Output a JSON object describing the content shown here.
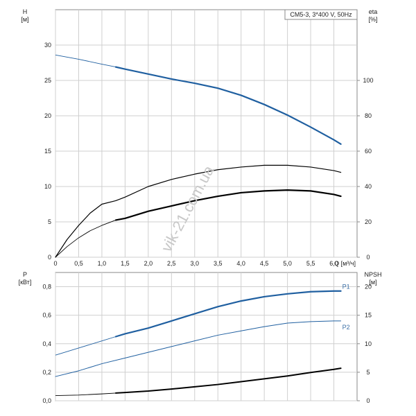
{
  "chart_data": [
    {
      "type": "line",
      "panel": "top",
      "model_label": "CM5-3, 3*400 V, 50Hz",
      "x_axis": {
        "label": "Q [м³/ч]",
        "range": [
          0,
          6.5
        ],
        "ticks": [
          "0",
          "0.5",
          "1.0",
          "1.5",
          "2.0",
          "2.5",
          "3.0",
          "3.5",
          "4.0",
          "4.5",
          "5.0",
          "5.5",
          "6.0"
        ]
      },
      "y_left": {
        "label": "H",
        "unit": "[м]",
        "range": [
          0,
          35
        ],
        "ticks": [
          "0",
          "5",
          "10",
          "15",
          "20",
          "25",
          "30"
        ]
      },
      "y_right": {
        "label": "eta",
        "unit": "[%]",
        "range": [
          0,
          140
        ],
        "ticks": [
          "0",
          "20",
          "40",
          "60",
          "80",
          "100"
        ]
      },
      "grid": true,
      "series": [
        {
          "axis": "left",
          "color": "#1f5fa0",
          "width": 2.2,
          "x": [
            0,
            0.5,
            1.0,
            1.3,
            1.5,
            2.0,
            2.5,
            3.0,
            3.5,
            4.0,
            4.5,
            5.0,
            5.5,
            6.0,
            6.15
          ],
          "y": [
            28.6,
            28.0,
            27.3,
            26.9,
            26.6,
            25.9,
            25.2,
            24.6,
            23.9,
            22.9,
            21.6,
            20.1,
            18.4,
            16.6,
            16.0
          ],
          "thin_before": 1.3
        },
        {
          "axis": "right",
          "color": "#000000",
          "width": 1.2,
          "x": [
            0,
            0.25,
            0.5,
            0.75,
            1.0,
            1.3,
            1.5,
            2.0,
            2.5,
            3.0,
            3.5,
            4.0,
            4.5,
            5.0,
            5.5,
            6.0,
            6.15
          ],
          "y": [
            0,
            10,
            18,
            25,
            30,
            32,
            34,
            40,
            44,
            47,
            49.5,
            51,
            52,
            52,
            51,
            49,
            48
          ]
        },
        {
          "axis": "right",
          "color": "#000000",
          "width": 2.2,
          "x": [
            0,
            0.25,
            0.5,
            0.75,
            1.0,
            1.3,
            1.5,
            2.0,
            2.5,
            3.0,
            3.5,
            4.0,
            4.5,
            5.0,
            5.5,
            6.0,
            6.15
          ],
          "y": [
            0,
            6,
            11,
            15,
            18,
            21,
            22,
            26,
            29,
            32,
            34.5,
            36.5,
            37.5,
            38,
            37.5,
            35.5,
            34.5
          ],
          "thin_before": 1.3
        }
      ]
    },
    {
      "type": "line",
      "panel": "bottom",
      "y_left": {
        "label": "P",
        "unit": "[кВт]",
        "range": [
          0,
          0.9
        ],
        "ticks": [
          "0.0",
          "0.2",
          "0.4",
          "0.6",
          "0.8"
        ]
      },
      "y_right": {
        "label": "NPSH",
        "unit": "[м]",
        "range": [
          0,
          22.5
        ],
        "ticks": [
          "0",
          "5",
          "10",
          "15",
          "20"
        ]
      },
      "grid": true,
      "series": [
        {
          "name": "P1",
          "axis": "left",
          "color": "#1f5fa0",
          "width": 2.2,
          "x": [
            0,
            0.5,
            1.0,
            1.3,
            1.5,
            2.0,
            2.5,
            3.0,
            3.5,
            4.0,
            4.5,
            5.0,
            5.5,
            6.0,
            6.15
          ],
          "y": [
            0.32,
            0.37,
            0.42,
            0.45,
            0.47,
            0.51,
            0.56,
            0.61,
            0.66,
            0.7,
            0.73,
            0.75,
            0.765,
            0.77,
            0.77
          ],
          "thin_before": 1.3
        },
        {
          "name": "P2",
          "axis": "left",
          "color": "#1f5fa0",
          "width": 1.0,
          "x": [
            0,
            0.5,
            1.0,
            1.5,
            2.0,
            2.5,
            3.0,
            3.5,
            4.0,
            4.5,
            5.0,
            5.5,
            6.0,
            6.15
          ],
          "y": [
            0.17,
            0.21,
            0.26,
            0.3,
            0.34,
            0.38,
            0.42,
            0.46,
            0.49,
            0.52,
            0.545,
            0.555,
            0.56,
            0.56
          ]
        },
        {
          "axis": "right",
          "color": "#000000",
          "width": 2.0,
          "x": [
            0,
            0.5,
            1.0,
            1.3,
            1.5,
            2.0,
            2.5,
            3.0,
            3.5,
            4.0,
            4.5,
            5.0,
            5.5,
            6.0,
            6.15
          ],
          "y": [
            0.9,
            1.0,
            1.2,
            1.35,
            1.45,
            1.7,
            2.05,
            2.45,
            2.85,
            3.35,
            3.85,
            4.35,
            4.95,
            5.5,
            5.7
          ],
          "thin_before": 1.3
        }
      ]
    }
  ],
  "watermark": "vik-21.com.ua"
}
